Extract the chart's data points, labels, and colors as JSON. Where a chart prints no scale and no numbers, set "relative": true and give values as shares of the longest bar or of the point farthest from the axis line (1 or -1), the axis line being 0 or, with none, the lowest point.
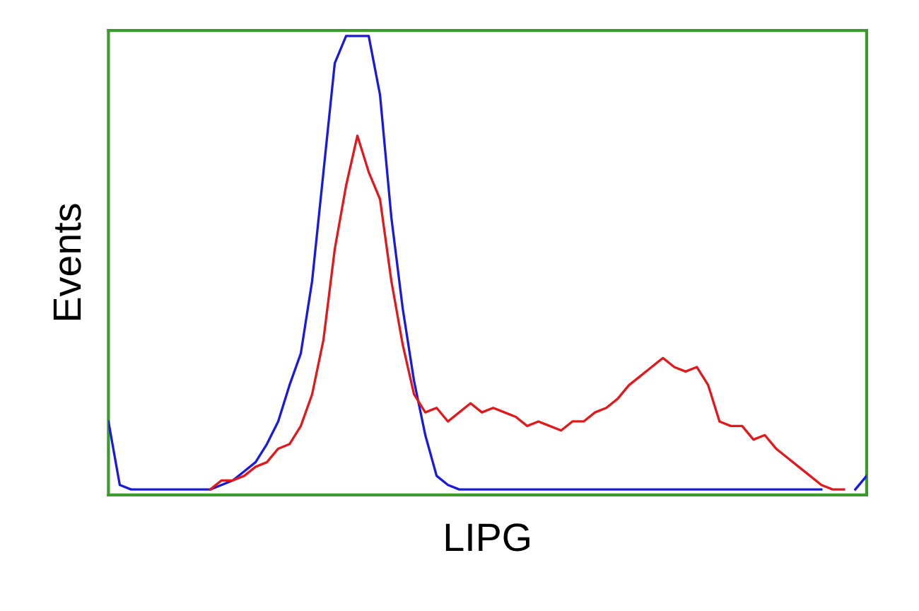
{
  "chart_data": {
    "type": "line",
    "relative": true,
    "xlabel": "LIPG",
    "ylabel": "Events",
    "tick_labels": false,
    "legend": false,
    "categories": [
      null,
      null,
      null,
      null,
      null,
      null,
      null,
      null,
      null,
      null,
      null,
      null,
      null,
      null,
      null,
      null,
      null,
      null,
      null,
      null,
      null,
      null,
      null,
      null,
      null,
      null,
      null,
      null,
      null,
      null,
      null,
      null,
      null,
      null,
      null,
      null,
      null,
      null,
      null,
      null,
      null,
      null,
      null,
      null,
      null,
      null,
      null,
      null,
      null,
      null,
      null,
      null,
      null,
      null,
      null,
      null,
      null,
      null,
      null,
      null,
      null,
      null,
      null,
      null,
      null,
      null,
      null,
      null
    ],
    "series": [
      {
        "color": "#1a1adc",
        "values": [
          0.15,
          0.01,
          0,
          0,
          0,
          0,
          0,
          0,
          0,
          0,
          0.01,
          0.02,
          0.04,
          0.06,
          0.1,
          0.15,
          0.23,
          0.3,
          0.46,
          0.7,
          0.94,
          1,
          1,
          1,
          0.87,
          0.6,
          0.4,
          0.24,
          0.12,
          0.03,
          0.01,
          0,
          0,
          0,
          0,
          0,
          0,
          0,
          0,
          0,
          0,
          0,
          0,
          0,
          0,
          0,
          0,
          0,
          0,
          0,
          0,
          0,
          0,
          0,
          0,
          0,
          0,
          0,
          0,
          0,
          0,
          0,
          0,
          0,
          null,
          null,
          0,
          0.03
        ]
      },
      {
        "color": "#e0191c",
        "values": [
          null,
          null,
          null,
          null,
          null,
          null,
          null,
          null,
          null,
          0,
          0.02,
          0.02,
          0.03,
          0.05,
          0.06,
          0.09,
          0.1,
          0.14,
          0.21,
          0.33,
          0.53,
          0.67,
          0.78,
          0.7,
          0.64,
          0.46,
          0.32,
          0.21,
          0.17,
          0.18,
          0.15,
          0.17,
          0.19,
          0.17,
          0.18,
          0.17,
          0.16,
          0.14,
          0.15,
          0.14,
          0.13,
          0.15,
          0.15,
          0.17,
          0.18,
          0.2,
          0.23,
          0.25,
          0.27,
          0.29,
          0.27,
          0.26,
          0.27,
          0.23,
          0.15,
          0.14,
          0.14,
          0.11,
          0.12,
          0.09,
          0.07,
          0.05,
          0.03,
          0.01,
          0,
          0,
          null,
          null
        ]
      }
    ]
  }
}
